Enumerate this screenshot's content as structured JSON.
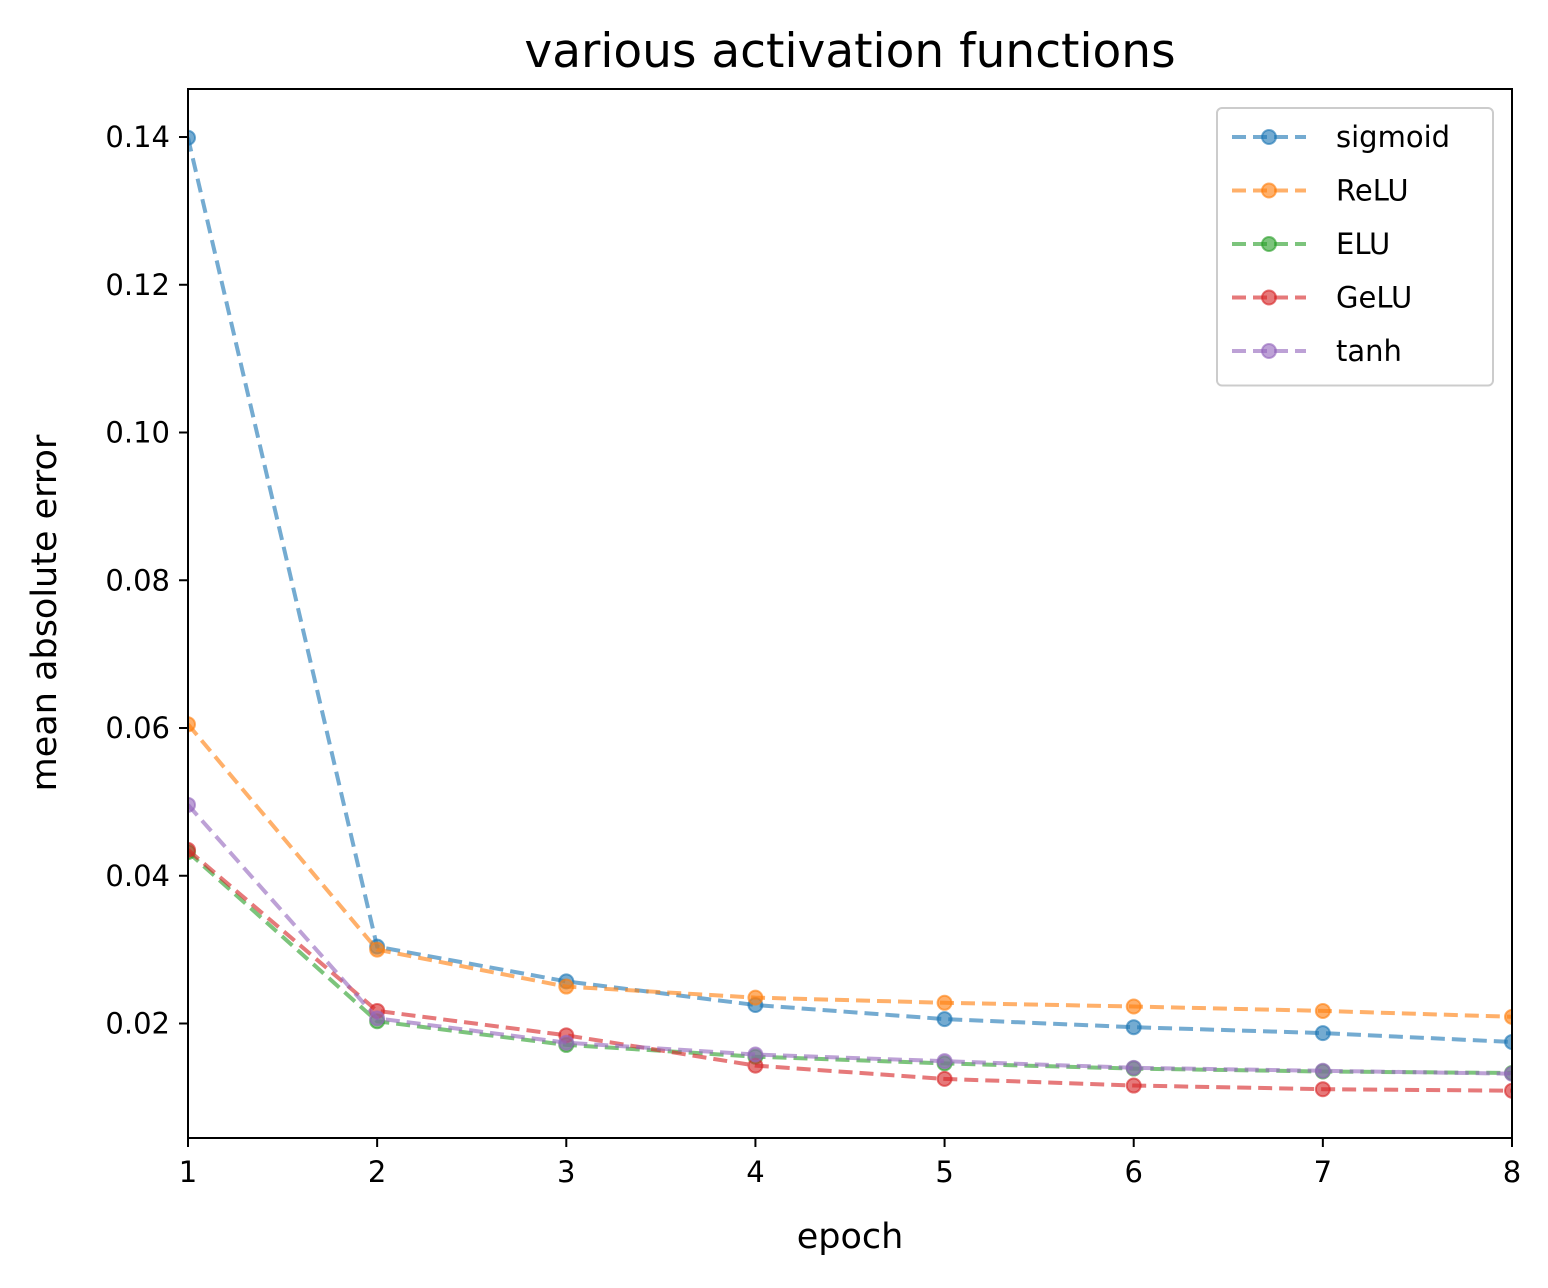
{
  "chart_data": {
    "type": "line",
    "title": "various activation functions",
    "xlabel": "epoch",
    "ylabel": "mean absolute error",
    "x": [
      1,
      2,
      3,
      4,
      5,
      6,
      7,
      8
    ],
    "xlim": [
      1,
      8
    ],
    "ylim": [
      0.0045,
      0.1465
    ],
    "xticks": [
      1,
      2,
      3,
      4,
      5,
      6,
      7,
      8
    ],
    "xtick_labels": [
      "1",
      "2",
      "3",
      "4",
      "5",
      "6",
      "7",
      "8"
    ],
    "yticks": [
      0.02,
      0.04,
      0.06,
      0.08,
      0.1,
      0.12,
      0.14
    ],
    "ytick_labels": [
      "0.02",
      "0.04",
      "0.06",
      "0.08",
      "0.10",
      "0.12",
      "0.14"
    ],
    "grid": false,
    "legend_position": "top-right",
    "line_style": "dashed",
    "marker": "circle",
    "series": [
      {
        "name": "sigmoid",
        "color": "#1f77b4",
        "values": [
          0.1399,
          0.0304,
          0.0257,
          0.0225,
          0.0206,
          0.0195,
          0.0187,
          0.0175
        ]
      },
      {
        "name": "ReLU",
        "color": "#ff7f0e",
        "values": [
          0.0605,
          0.03,
          0.025,
          0.0235,
          0.0228,
          0.0223,
          0.0217,
          0.0209
        ]
      },
      {
        "name": "ELU",
        "color": "#2ca02c",
        "values": [
          0.0432,
          0.0203,
          0.0171,
          0.0155,
          0.0146,
          0.0139,
          0.0135,
          0.0133
        ]
      },
      {
        "name": "GeLU",
        "color": "#d62728",
        "values": [
          0.0435,
          0.0217,
          0.0184,
          0.0143,
          0.0125,
          0.0116,
          0.0111,
          0.0109
        ]
      },
      {
        "name": "tanh",
        "color": "#9467bd",
        "values": [
          0.0496,
          0.0207,
          0.0174,
          0.0158,
          0.0149,
          0.014,
          0.0136,
          0.0132
        ]
      }
    ]
  }
}
